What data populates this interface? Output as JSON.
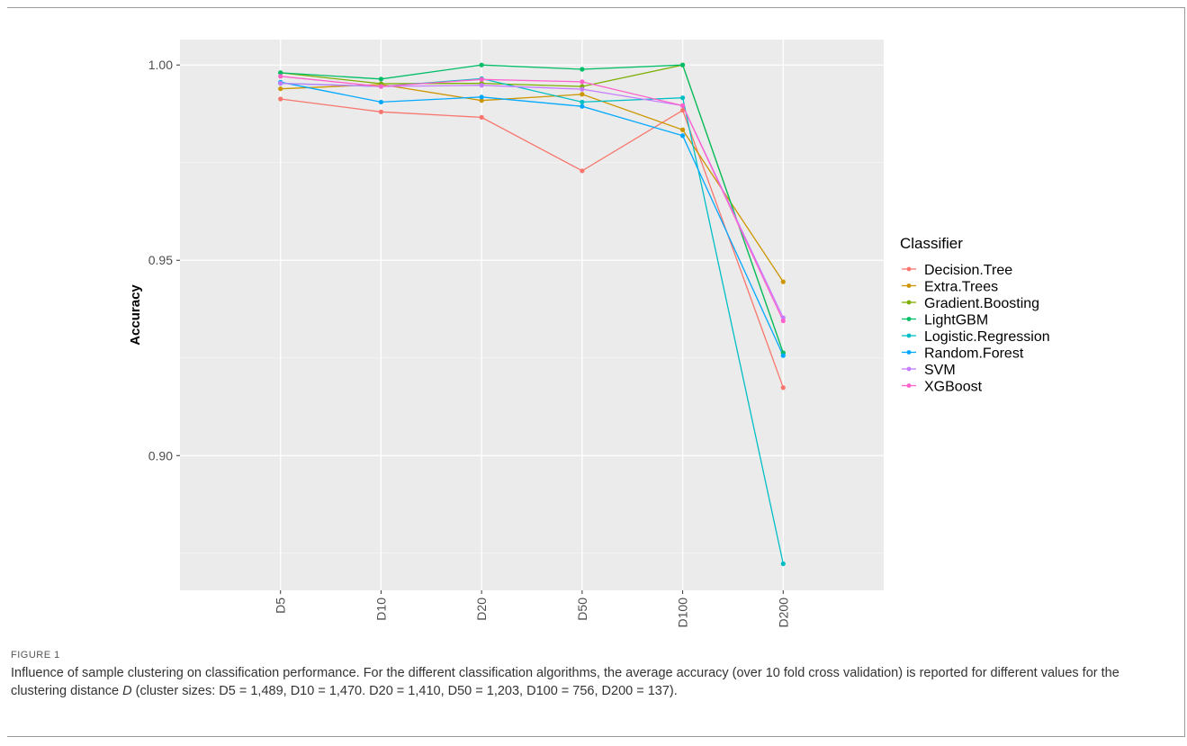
{
  "figure": {
    "label": "FIGURE 1",
    "caption_part1": "Influence of sample clustering on classification performance. For the different classification algorithms, the average accuracy (over 10 fold cross validation) is reported for different values for the clustering distance ",
    "caption_var": "D",
    "caption_part2": " (cluster sizes: D5 = 1,489, D10 = 1,470. D20 = 1,410, D50 = 1,203, D100 = 756, D200 = 137)."
  },
  "chart_data": {
    "type": "line",
    "title": "",
    "xlabel": "",
    "ylabel": "Accuracy",
    "categories": [
      "D5",
      "D10",
      "D20",
      "D50",
      "D100",
      "D200"
    ],
    "ylim": [
      0.8655,
      1.0065
    ],
    "yticks": [
      0.9,
      0.95,
      1.0
    ],
    "ytick_labels": [
      "0.90",
      "0.95",
      "1.00"
    ],
    "grid": true,
    "legend_title": "Classifier",
    "legend_position": "right",
    "series": [
      {
        "name": "Decision.Tree",
        "color": "#F8766D",
        "values": [
          0.9913,
          0.988,
          0.9866,
          0.9729,
          0.9884,
          0.9174
        ]
      },
      {
        "name": "Extra.Trees",
        "color": "#CD9600",
        "values": [
          0.9939,
          0.995,
          0.9909,
          0.9925,
          0.9834,
          0.9445
        ]
      },
      {
        "name": "Gradient.Boosting",
        "color": "#7CAE00",
        "values": [
          0.998,
          0.9952,
          0.9953,
          0.9945,
          1.0,
          0.9263
        ]
      },
      {
        "name": "LightGBM",
        "color": "#00BE67",
        "values": [
          0.998,
          0.9964,
          1.0,
          0.9989,
          1.0,
          0.9263
        ]
      },
      {
        "name": "Logistic.Regression",
        "color": "#00BFC4",
        "values": [
          0.9953,
          0.9945,
          0.9965,
          0.9905,
          0.9916,
          0.8723
        ]
      },
      {
        "name": "Random.Forest",
        "color": "#00A9FF",
        "values": [
          0.9956,
          0.9905,
          0.9918,
          0.9894,
          0.9819,
          0.9256
        ]
      },
      {
        "name": "SVM",
        "color": "#C77CFF",
        "values": [
          0.9953,
          0.9945,
          0.9948,
          0.9938,
          0.9896,
          0.9353
        ]
      },
      {
        "name": "XGBoost",
        "color": "#FF61CC",
        "values": [
          0.9971,
          0.9945,
          0.9963,
          0.9957,
          0.9896,
          0.9345
        ]
      }
    ]
  }
}
